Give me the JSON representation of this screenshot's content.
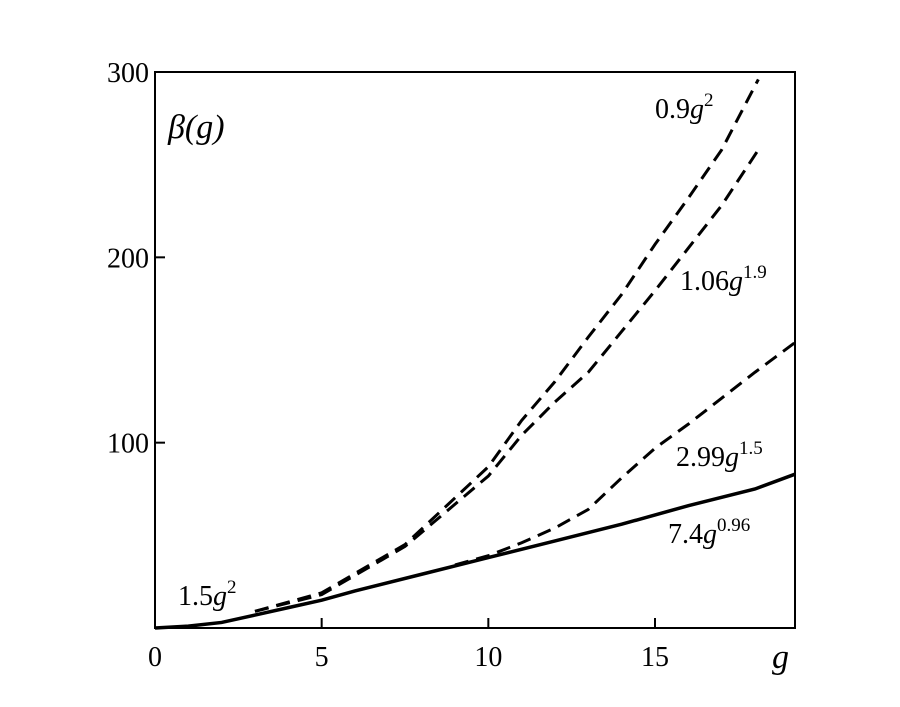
{
  "chart_data": {
    "type": "line",
    "x_label": "g",
    "y_label": "β(g)",
    "xlim": [
      0,
      19.2
    ],
    "ylim": [
      0,
      300
    ],
    "xticks": [
      0,
      5,
      10,
      15
    ],
    "yticks": [
      100,
      200,
      300
    ],
    "series": [
      {
        "label": {
          "coef": "7.4",
          "var": "g",
          "exp": "0.96"
        },
        "color": "#000000",
        "dash": false,
        "x": [
          0,
          1,
          2,
          3,
          4,
          5,
          6,
          8,
          10,
          12,
          14,
          16,
          18,
          19.2
        ],
        "values": [
          0,
          1,
          3,
          7,
          11,
          15,
          20,
          29,
          38,
          47,
          56,
          66,
          75,
          83
        ]
      },
      {
        "label": {
          "coef": "2.99",
          "var": "g",
          "exp": "1.5"
        },
        "color": "#000000",
        "dash": true,
        "x": [
          9,
          10,
          11,
          12,
          13,
          14,
          15,
          16,
          17,
          18,
          19.2
        ],
        "values": [
          34,
          39,
          46,
          54,
          64,
          81,
          97,
          110,
          124,
          138,
          154
        ]
      },
      {
        "label": {
          "coef": "1.06",
          "var": "g",
          "exp": "1.9"
        },
        "color": "#000000",
        "dash": true,
        "x": [
          3,
          5,
          7.5,
          10,
          11,
          12,
          13,
          14,
          15,
          16,
          17,
          18.1
        ],
        "values": [
          9,
          18,
          44,
          82,
          104,
          122,
          138,
          160,
          182,
          205,
          228,
          258
        ]
      },
      {
        "label": {
          "coef": "0.9",
          "var": "g",
          "exp": "2"
        },
        "color": "#000000",
        "dash": true,
        "x": [
          3,
          5,
          7.5,
          10,
          11,
          12,
          13,
          14,
          15,
          16,
          17,
          18.1
        ],
        "values": [
          9,
          19,
          45,
          87,
          112,
          133,
          157,
          180,
          207,
          232,
          258,
          296
        ]
      }
    ],
    "annotations": [
      {
        "coef": "1.5",
        "var": "g",
        "exp": "2"
      }
    ]
  }
}
